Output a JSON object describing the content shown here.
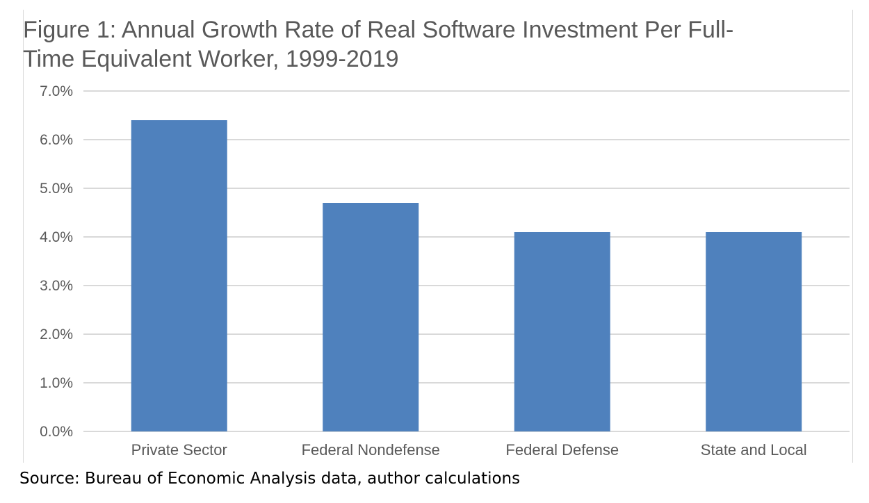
{
  "chart_data": {
    "type": "bar",
    "title": "Figure 1: Annual Growth Rate of Real Software Investment Per Full-Time Equivalent Worker, 1999-2019",
    "title_lines": [
      "Figure 1: Annual Growth Rate of Real Software Investment Per Full-",
      "Time Equivalent Worker, 1999-2019"
    ],
    "categories": [
      "Private Sector",
      "Federal Nondefense",
      "Federal Defense",
      "State and Local"
    ],
    "values": [
      6.4,
      4.7,
      4.1,
      4.1
    ],
    "ylim": [
      0,
      7
    ],
    "yticks": [
      0,
      1,
      2,
      3,
      4,
      5,
      6,
      7
    ],
    "ytick_labels": [
      "0.0%",
      "1.0%",
      "2.0%",
      "3.0%",
      "4.0%",
      "5.0%",
      "6.0%",
      "7.0%"
    ],
    "xlabel": "",
    "ylabel": "",
    "grid": true,
    "bar_color": "#4f81bd",
    "grid_color": "#d9d9d9"
  },
  "source": "Source: Bureau of Economic Analysis data, author calculations"
}
